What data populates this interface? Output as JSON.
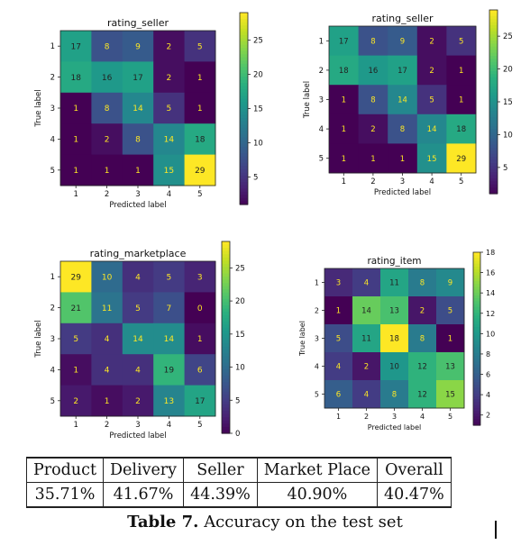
{
  "chart_data": [
    {
      "type": "heatmap",
      "title": "rating_seller",
      "xlabel": "Predicted label",
      "ylabel": "True label",
      "categories": [
        "1",
        "2",
        "3",
        "4",
        "5"
      ],
      "matrix": [
        [
          17,
          8,
          9,
          2,
          5
        ],
        [
          18,
          16,
          17,
          2,
          1
        ],
        [
          1,
          8,
          14,
          5,
          1
        ],
        [
          1,
          2,
          8,
          14,
          18
        ],
        [
          1,
          1,
          1,
          15,
          29
        ]
      ],
      "colorbar_ticks": [
        5,
        10,
        15,
        20,
        25
      ],
      "vmin": 1,
      "vmax": 29,
      "colormap": "viridis"
    },
    {
      "type": "heatmap",
      "title": "rating_seller",
      "xlabel": "Predicted label",
      "ylabel": "True label",
      "categories": [
        "1",
        "2",
        "3",
        "4",
        "5"
      ],
      "matrix": [
        [
          17,
          8,
          9,
          2,
          5
        ],
        [
          18,
          16,
          17,
          2,
          1
        ],
        [
          1,
          8,
          14,
          5,
          1
        ],
        [
          1,
          2,
          8,
          14,
          18
        ],
        [
          1,
          1,
          1,
          15,
          29
        ]
      ],
      "colorbar_ticks": [
        5,
        10,
        15,
        20,
        25
      ],
      "vmin": 1,
      "vmax": 29,
      "colormap": "viridis"
    },
    {
      "type": "heatmap",
      "title": "rating_marketplace",
      "xlabel": "Predicted label",
      "ylabel": "True label",
      "categories": [
        "1",
        "2",
        "3",
        "4",
        "5"
      ],
      "matrix": [
        [
          29,
          10,
          4,
          5,
          3
        ],
        [
          21,
          11,
          5,
          7,
          0
        ],
        [
          5,
          4,
          14,
          14,
          1
        ],
        [
          1,
          4,
          4,
          19,
          6
        ],
        [
          2,
          1,
          2,
          13,
          17
        ]
      ],
      "colorbar_ticks": [
        0,
        5,
        10,
        15,
        20,
        25
      ],
      "vmin": 0,
      "vmax": 29,
      "colormap": "viridis"
    },
    {
      "type": "heatmap",
      "title": "rating_item",
      "xlabel": "Predicted label",
      "ylabel": "True label",
      "categories": [
        "1",
        "2",
        "3",
        "4",
        "5"
      ],
      "matrix": [
        [
          3,
          4,
          11,
          8,
          9
        ],
        [
          1,
          14,
          13,
          2,
          5
        ],
        [
          5,
          11,
          18,
          8,
          1
        ],
        [
          4,
          2,
          10,
          12,
          13
        ],
        [
          6,
          4,
          8,
          12,
          15
        ]
      ],
      "colorbar_ticks": [
        2,
        4,
        6,
        8,
        10,
        12,
        14,
        16,
        18
      ],
      "vmin": 1,
      "vmax": 18,
      "colormap": "viridis"
    }
  ],
  "table": {
    "headers": [
      "Product",
      "Delivery",
      "Seller",
      "Market Place",
      "Overall"
    ],
    "values": [
      "35.71%",
      "41.67%",
      "44.39%",
      "40.90%",
      "40.47%"
    ]
  },
  "caption": {
    "label": "Table 7.",
    "text": "Accuracy on the test set"
  }
}
